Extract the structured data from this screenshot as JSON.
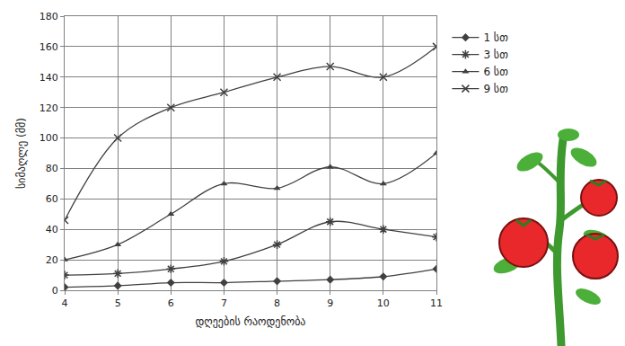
{
  "chart_data": {
    "type": "line",
    "x_label": "დღეების რაოდენობა",
    "y_label": "სიმაღლე (მმ)",
    "x": [
      4,
      5,
      6,
      7,
      8,
      9,
      10,
      11
    ],
    "series": [
      {
        "name": "1 სთ",
        "color": "#404040",
        "marker": "diamond",
        "line_style": "smooth",
        "values": [
          2,
          3,
          5,
          5,
          6,
          7,
          9,
          14
        ]
      },
      {
        "name": "3 სთ",
        "color": "#404040",
        "marker": "asterisk",
        "line_style": "smooth",
        "values": [
          10,
          11,
          14,
          19,
          30,
          45,
          40,
          35
        ]
      },
      {
        "name": "6 სთ",
        "color": "#404040",
        "marker": "triangle",
        "line_style": "smooth",
        "values": [
          20,
          30,
          50,
          70,
          67,
          81,
          70,
          90
        ]
      },
      {
        "name": "9 სთ",
        "color": "#404040",
        "marker": "x",
        "line_style": "smooth",
        "values": [
          46,
          100,
          120,
          130,
          140,
          147,
          140,
          160
        ]
      }
    ],
    "xlim": [
      4,
      11
    ],
    "xticks": [
      4,
      5,
      6,
      7,
      8,
      9,
      10,
      11
    ],
    "ylim": [
      0,
      180
    ],
    "yticks": [
      0,
      20,
      40,
      60,
      80,
      100,
      120,
      140,
      160,
      180
    ],
    "grid": true,
    "legend": "right"
  }
}
